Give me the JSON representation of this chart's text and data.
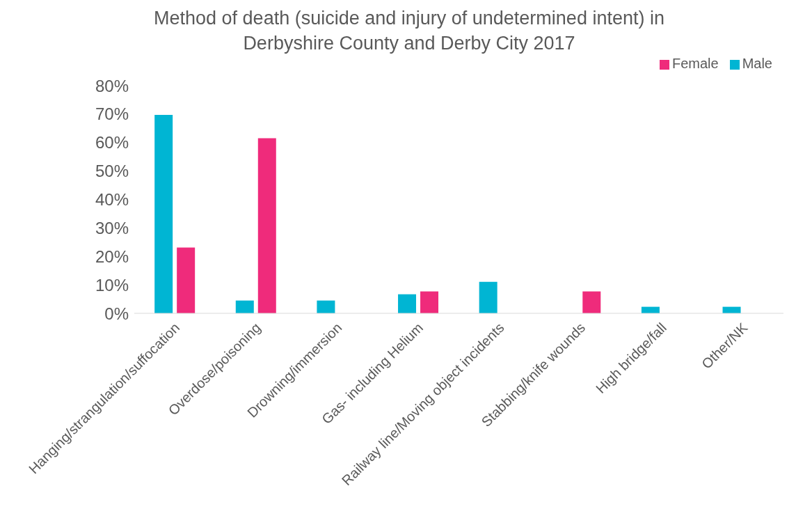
{
  "chart_data": {
    "type": "bar",
    "title": "Method of death (suicide and injury of undetermined intent) in Derbyshire County and Derby City 2017",
    "categories": [
      "Hanging/strangulation/suffocation",
      "Overdose/poisoning",
      "Drowning/immersion",
      "Gas- including Helium",
      "Railway line/Moving object incidents",
      "Stabbing/knife wounds",
      "High bridge/fall",
      "Other/NK"
    ],
    "series": [
      {
        "name": "Male",
        "color": "#00b5d3",
        "values": [
          69.7,
          4.5,
          4.5,
          6.7,
          11.1,
          null,
          2.3,
          2.3
        ]
      },
      {
        "name": "Female",
        "color": "#ef2b7b",
        "values": [
          23.1,
          61.5,
          null,
          7.7,
          null,
          7.7,
          null,
          null
        ]
      }
    ],
    "ylim": [
      0,
      80
    ],
    "yticks": [
      {
        "value": 0,
        "label": "0%"
      },
      {
        "value": 10,
        "label": "10%"
      },
      {
        "value": 20,
        "label": "20%"
      },
      {
        "value": 30,
        "label": "30%"
      },
      {
        "value": 40,
        "label": "40%"
      },
      {
        "value": 50,
        "label": "50%"
      },
      {
        "value": 60,
        "label": "60%"
      },
      {
        "value": 70,
        "label": "70%"
      },
      {
        "value": 80,
        "label": "80%"
      }
    ],
    "grid": false,
    "legend": "top right"
  }
}
